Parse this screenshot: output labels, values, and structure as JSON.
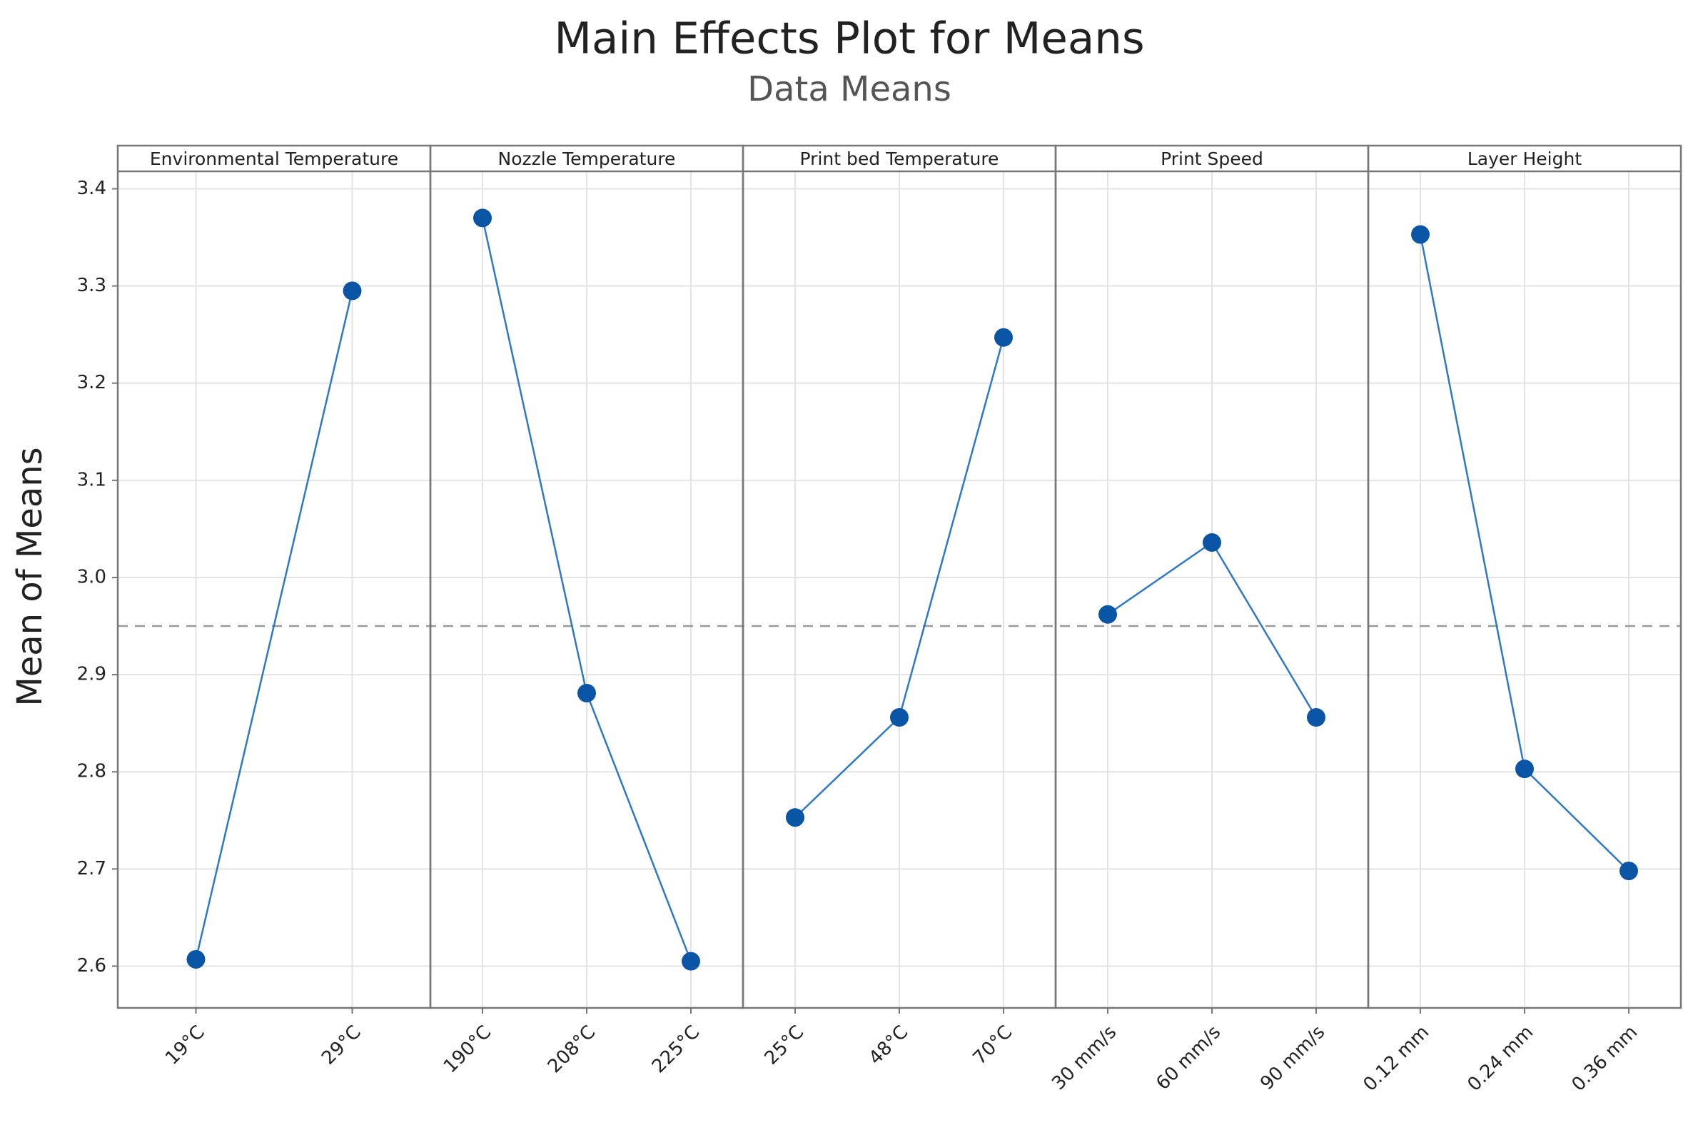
{
  "chart_data": {
    "type": "line",
    "title": "Main Effects Plot for Means",
    "subtitle": "Data Means",
    "ylabel": "Mean of Means",
    "ylim": [
      2.557,
      3.418
    ],
    "yticks": [
      2.6,
      2.7,
      2.8,
      2.9,
      {
        "value": 3.0,
        "label": "3.0"
      },
      3.1,
      3.2,
      3.3,
      3.4
    ],
    "reference": 2.95,
    "grid": true,
    "line_color": "#2e78c8",
    "marker_color": "#0b55a6",
    "panels": [
      {
        "title": "Environmental Temperature",
        "categories": [
          "19°C",
          "29°C"
        ],
        "values": [
          2.607,
          3.295
        ]
      },
      {
        "title": "Nozzle Temperature",
        "categories": [
          "190°C",
          "208°C",
          "225°C"
        ],
        "values": [
          3.37,
          2.881,
          2.605
        ]
      },
      {
        "title": "Print bed Temperature",
        "categories": [
          "25°C",
          "48°C",
          "70°C"
        ],
        "values": [
          2.753,
          2.856,
          3.247
        ]
      },
      {
        "title": "Print Speed",
        "categories": [
          "30 mm/s",
          "60 mm/s",
          "90 mm/s"
        ],
        "values": [
          2.962,
          3.036,
          2.856
        ]
      },
      {
        "title": "Layer Height",
        "categories": [
          "0.12 mm",
          "0.24 mm",
          "0.36 mm"
        ],
        "values": [
          3.353,
          2.803,
          2.698
        ]
      }
    ]
  }
}
